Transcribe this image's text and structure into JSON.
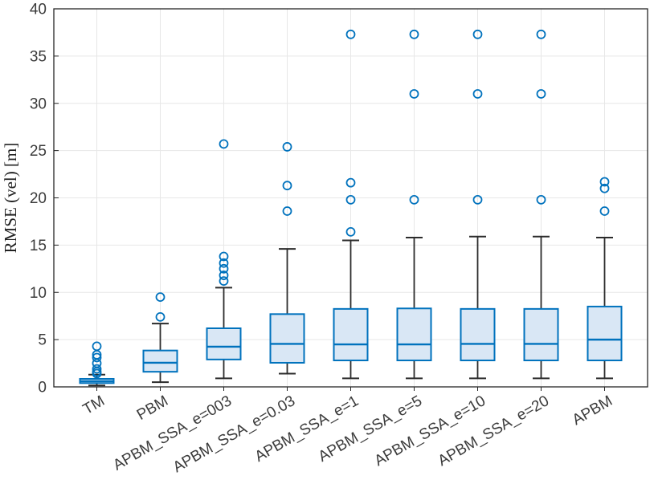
{
  "figure": {
    "ylabel": "RMSE (vel) [m]"
  },
  "style": {
    "box_edge_color": "#0072BD",
    "box_fill_color": "#d9e7f5",
    "median_color": "#0072BD",
    "outlier_color": "#0072BD",
    "whisker_color": "#2b2b2b",
    "axis_color": "#262626",
    "grid_color": "#e7e7e7",
    "background": "#ffffff"
  },
  "chart_data": {
    "type": "boxplot",
    "title": "",
    "xlabel": "",
    "ylabel": "RMSE (vel) [m]",
    "ylim": [
      0,
      40
    ],
    "yticks": [
      0,
      5,
      10,
      15,
      20,
      25,
      30,
      35,
      40
    ],
    "grid": true,
    "categories": [
      "TM",
      "PBM",
      "APBM_SSA_e=003",
      "APBM_SSA_e=0.03",
      "APBM_SSA_e=1",
      "APBM_SSA_e=5",
      "APBM_SSA_e=10",
      "APBM_SSA_e=20",
      "APBM"
    ],
    "boxes": [
      {
        "label": "TM",
        "whisker_low": 0.15,
        "q1": 0.4,
        "median": 0.6,
        "q3": 0.85,
        "whisker_high": 1.3,
        "outliers": [
          1.4,
          1.6,
          1.9,
          2.5,
          3.1,
          3.4,
          4.3
        ]
      },
      {
        "label": "PBM",
        "whisker_low": 0.5,
        "q1": 1.6,
        "median": 2.55,
        "q3": 3.85,
        "whisker_high": 6.7,
        "outliers": [
          7.4,
          9.5
        ]
      },
      {
        "label": "APBM_SSA_e=003",
        "whisker_low": 0.9,
        "q1": 2.9,
        "median": 4.25,
        "q3": 6.2,
        "whisker_high": 10.5,
        "outliers": [
          11.2,
          11.8,
          12.5,
          13.1,
          13.8,
          25.7
        ]
      },
      {
        "label": "APBM_SSA_e=0.03",
        "whisker_low": 1.4,
        "q1": 2.55,
        "median": 4.55,
        "q3": 7.7,
        "whisker_high": 14.6,
        "outliers": [
          18.6,
          21.3,
          25.4
        ]
      },
      {
        "label": "APBM_SSA_e=1",
        "whisker_low": 0.9,
        "q1": 2.8,
        "median": 4.5,
        "q3": 8.25,
        "whisker_high": 15.5,
        "outliers": [
          16.4,
          19.8,
          21.6,
          37.3
        ]
      },
      {
        "label": "APBM_SSA_e=5",
        "whisker_low": 0.9,
        "q1": 2.8,
        "median": 4.5,
        "q3": 8.3,
        "whisker_high": 15.8,
        "outliers": [
          19.8,
          31.0,
          37.3
        ]
      },
      {
        "label": "APBM_SSA_e=10",
        "whisker_low": 0.9,
        "q1": 2.8,
        "median": 4.55,
        "q3": 8.25,
        "whisker_high": 15.9,
        "outliers": [
          19.8,
          31.0,
          37.3
        ]
      },
      {
        "label": "APBM_SSA_e=20",
        "whisker_low": 0.9,
        "q1": 2.8,
        "median": 4.55,
        "q3": 8.25,
        "whisker_high": 15.9,
        "outliers": [
          19.8,
          31.0,
          37.3
        ]
      },
      {
        "label": "APBM",
        "whisker_low": 0.9,
        "q1": 2.8,
        "median": 5.0,
        "q3": 8.5,
        "whisker_high": 15.8,
        "outliers": [
          18.6,
          21.0,
          21.7
        ]
      }
    ]
  }
}
